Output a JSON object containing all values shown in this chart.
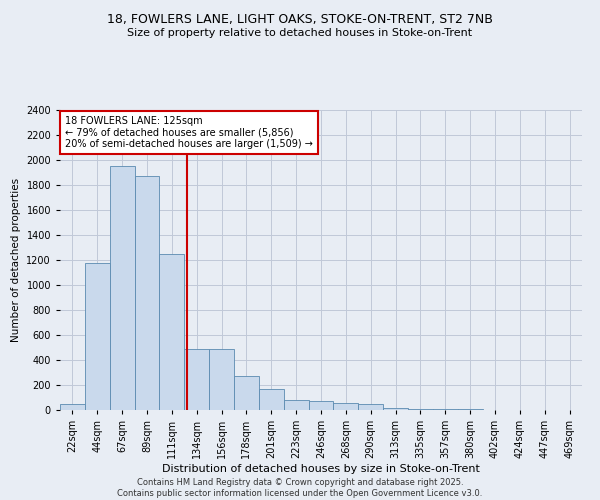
{
  "title_line1": "18, FOWLERS LANE, LIGHT OAKS, STOKE-ON-TRENT, ST2 7NB",
  "title_line2": "Size of property relative to detached houses in Stoke-on-Trent",
  "xlabel": "Distribution of detached houses by size in Stoke-on-Trent",
  "ylabel": "Number of detached properties",
  "bar_labels": [
    "22sqm",
    "44sqm",
    "67sqm",
    "89sqm",
    "111sqm",
    "134sqm",
    "156sqm",
    "178sqm",
    "201sqm",
    "223sqm",
    "246sqm",
    "268sqm",
    "290sqm",
    "313sqm",
    "335sqm",
    "357sqm",
    "380sqm",
    "402sqm",
    "424sqm",
    "447sqm",
    "469sqm"
  ],
  "bar_values": [
    50,
    1175,
    1950,
    1875,
    1250,
    490,
    490,
    270,
    170,
    80,
    75,
    60,
    50,
    15,
    10,
    5,
    5,
    2,
    2,
    1,
    1
  ],
  "bar_color": "#c9d9ec",
  "bar_edge_color": "#5a8ab0",
  "vline_color": "#cc0000",
  "annotation_line1": "18 FOWLERS LANE: 125sqm",
  "annotation_line2": "← 79% of detached houses are smaller (5,856)",
  "annotation_line3": "20% of semi-detached houses are larger (1,509) →",
  "annotation_box_color": "#ffffff",
  "annotation_box_edge": "#cc0000",
  "grid_color": "#c0c8d8",
  "ylim": [
    0,
    2400
  ],
  "yticks": [
    0,
    200,
    400,
    600,
    800,
    1000,
    1200,
    1400,
    1600,
    1800,
    2000,
    2200,
    2400
  ],
  "footer_line1": "Contains HM Land Registry data © Crown copyright and database right 2025.",
  "footer_line2": "Contains public sector information licensed under the Open Government Licence v3.0.",
  "bg_color": "#e8edf4",
  "title1_fontsize": 9,
  "title2_fontsize": 8,
  "ylabel_fontsize": 7.5,
  "xlabel_fontsize": 8,
  "tick_fontsize": 7,
  "annotation_fontsize": 7,
  "footer_fontsize": 6
}
